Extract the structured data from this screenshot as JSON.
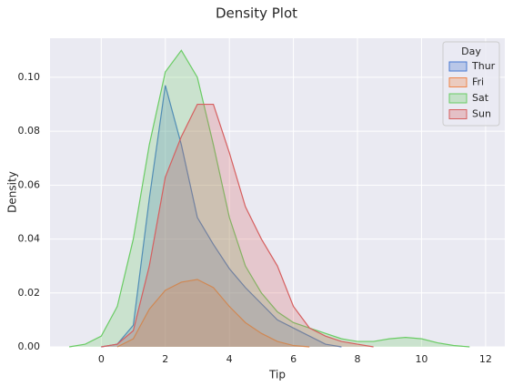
{
  "chart_data": {
    "type": "area",
    "title": "Density Plot",
    "x_label": "Tip",
    "y_label": "Density",
    "xlim": [
      -1.6,
      12.6
    ],
    "ylim": [
      0,
      0.1145
    ],
    "xticks": [
      0,
      2,
      4,
      6,
      8,
      10,
      12
    ],
    "yticks": [
      {
        "value": 0,
        "label": "0.00"
      },
      {
        "value": 0.02,
        "label": "0.02"
      },
      {
        "value": 0.04,
        "label": "0.04"
      },
      {
        "value": 0.06,
        "label": "0.06"
      },
      {
        "value": 0.08,
        "label": "0.08"
      },
      {
        "value": 0.1,
        "label": "0.10"
      }
    ],
    "grid": true,
    "legend_title": "Day",
    "legend_position": "upper right",
    "series": [
      {
        "name": "Thur",
        "color": "#4878d0",
        "x": [
          0,
          0.5,
          1,
          1.5,
          2,
          2.5,
          3,
          3.5,
          4,
          4.5,
          5,
          5.5,
          6,
          6.5,
          7,
          7.5
        ],
        "values": [
          0,
          0.001,
          0.008,
          0.055,
          0.097,
          0.075,
          0.048,
          0.038,
          0.029,
          0.022,
          0.016,
          0.01,
          0.007,
          0.004,
          0.001,
          0
        ]
      },
      {
        "name": "Fri",
        "color": "#ee854a",
        "x": [
          0.5,
          1,
          1.5,
          2,
          2.5,
          3,
          3.5,
          4,
          4.5,
          5,
          5.5,
          6,
          6.5
        ],
        "values": [
          0,
          0.003,
          0.014,
          0.021,
          0.024,
          0.025,
          0.022,
          0.015,
          0.009,
          0.005,
          0.002,
          0.0005,
          0
        ]
      },
      {
        "name": "Sat",
        "color": "#6acc64",
        "x": [
          -1,
          -0.5,
          0,
          0.5,
          1,
          1.5,
          2,
          2.5,
          3,
          3.5,
          4,
          4.5,
          5,
          5.5,
          6,
          6.5,
          7,
          7.5,
          8,
          8.5,
          9,
          9.5,
          10,
          10.5,
          11,
          11.5
        ],
        "values": [
          0,
          0.001,
          0.004,
          0.015,
          0.04,
          0.075,
          0.102,
          0.11,
          0.1,
          0.075,
          0.048,
          0.03,
          0.02,
          0.013,
          0.009,
          0.007,
          0.005,
          0.003,
          0.002,
          0.002,
          0.003,
          0.0035,
          0.003,
          0.0015,
          0.0005,
          0
        ]
      },
      {
        "name": "Sun",
        "color": "#d65f5f",
        "x": [
          0,
          0.5,
          1,
          1.5,
          2,
          2.5,
          3,
          3.5,
          4,
          4.5,
          5,
          5.5,
          6,
          6.5,
          7,
          7.5,
          8,
          8.5
        ],
        "values": [
          0,
          0.001,
          0.006,
          0.03,
          0.063,
          0.078,
          0.09,
          0.09,
          0.072,
          0.052,
          0.04,
          0.03,
          0.015,
          0.007,
          0.004,
          0.002,
          0.001,
          0
        ]
      }
    ]
  }
}
